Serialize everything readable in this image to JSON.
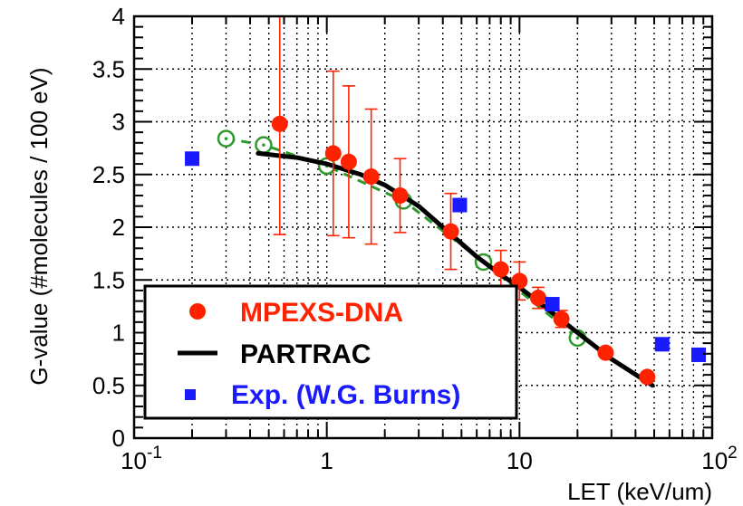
{
  "chart_data": {
    "type": "scatter",
    "xlabel": "LET (keV/um)",
    "ylabel": "G-value (#molecules / 100 eV)",
    "x_scale": "log",
    "xlim": [
      0.1,
      100
    ],
    "ylim": [
      0,
      4
    ],
    "grid": true,
    "x_tick_labels": [
      {
        "base": "10",
        "exp": "-1",
        "value": 0.1
      },
      {
        "base": "1",
        "exp": "",
        "value": 1
      },
      {
        "base": "10",
        "exp": "",
        "value": 10
      },
      {
        "base": "10",
        "exp": "2",
        "value": 100
      }
    ],
    "y_tick_labels": [
      "0",
      "0.5",
      "1",
      "1.5",
      "2",
      "2.5",
      "3",
      "3.5",
      "4"
    ],
    "y_ticks": [
      0,
      0.5,
      1,
      1.5,
      2,
      2.5,
      3,
      3.5,
      4
    ],
    "legend_position": "bottom-left",
    "series": [
      {
        "name": "MPEXS-DNA",
        "marker": "circle",
        "color": "#ff2200",
        "points": [
          {
            "x": 0.57,
            "y": 2.98,
            "err": 1.05
          },
          {
            "x": 1.08,
            "y": 2.7,
            "err": 0.78
          },
          {
            "x": 1.3,
            "y": 2.62,
            "err": 0.72
          },
          {
            "x": 1.7,
            "y": 2.48,
            "err": 0.64
          },
          {
            "x": 2.4,
            "y": 2.3,
            "err": 0.35
          },
          {
            "x": 4.4,
            "y": 1.96,
            "err": 0.36
          },
          {
            "x": 8.0,
            "y": 1.6,
            "err": 0.18
          },
          {
            "x": 10.0,
            "y": 1.49,
            "err": 0.18
          },
          {
            "x": 12.5,
            "y": 1.33,
            "err": 0.1
          },
          {
            "x": 16.5,
            "y": 1.13,
            "err": 0.08
          },
          {
            "x": 28.0,
            "y": 0.81,
            "err": 0
          },
          {
            "x": 46.0,
            "y": 0.58,
            "err": 0
          }
        ]
      },
      {
        "name": "PARTRAC",
        "marker": "line",
        "color": "#000000",
        "points": [
          {
            "x": 0.44,
            "y": 2.7
          },
          {
            "x": 0.7,
            "y": 2.66
          },
          {
            "x": 1.0,
            "y": 2.6
          },
          {
            "x": 1.5,
            "y": 2.5
          },
          {
            "x": 2.0,
            "y": 2.4
          },
          {
            "x": 3.0,
            "y": 2.2
          },
          {
            "x": 4.0,
            "y": 2.0
          },
          {
            "x": 6.0,
            "y": 1.72
          },
          {
            "x": 8.0,
            "y": 1.55
          },
          {
            "x": 10.0,
            "y": 1.43
          },
          {
            "x": 15.0,
            "y": 1.18
          },
          {
            "x": 20.0,
            "y": 1.0
          },
          {
            "x": 30.0,
            "y": 0.75
          },
          {
            "x": 49.0,
            "y": 0.5
          }
        ]
      },
      {
        "name": "",
        "marker": "dashed-line-open-circle",
        "color": "#2e9a2e",
        "points": [
          {
            "x": 0.3,
            "y": 2.84
          },
          {
            "x": 0.47,
            "y": 2.78
          },
          {
            "x": 1.0,
            "y": 2.58
          },
          {
            "x": 2.5,
            "y": 2.25
          },
          {
            "x": 6.5,
            "y": 1.67
          },
          {
            "x": 20.0,
            "y": 0.95
          }
        ]
      },
      {
        "name": "Exp. (W.G. Burns)",
        "marker": "square",
        "color": "#1a1aff",
        "points": [
          {
            "x": 0.2,
            "y": 2.65
          },
          {
            "x": 4.9,
            "y": 2.21
          },
          {
            "x": 14.8,
            "y": 1.27
          },
          {
            "x": 55.0,
            "y": 0.89
          },
          {
            "x": 85.0,
            "y": 0.79
          }
        ]
      }
    ]
  }
}
